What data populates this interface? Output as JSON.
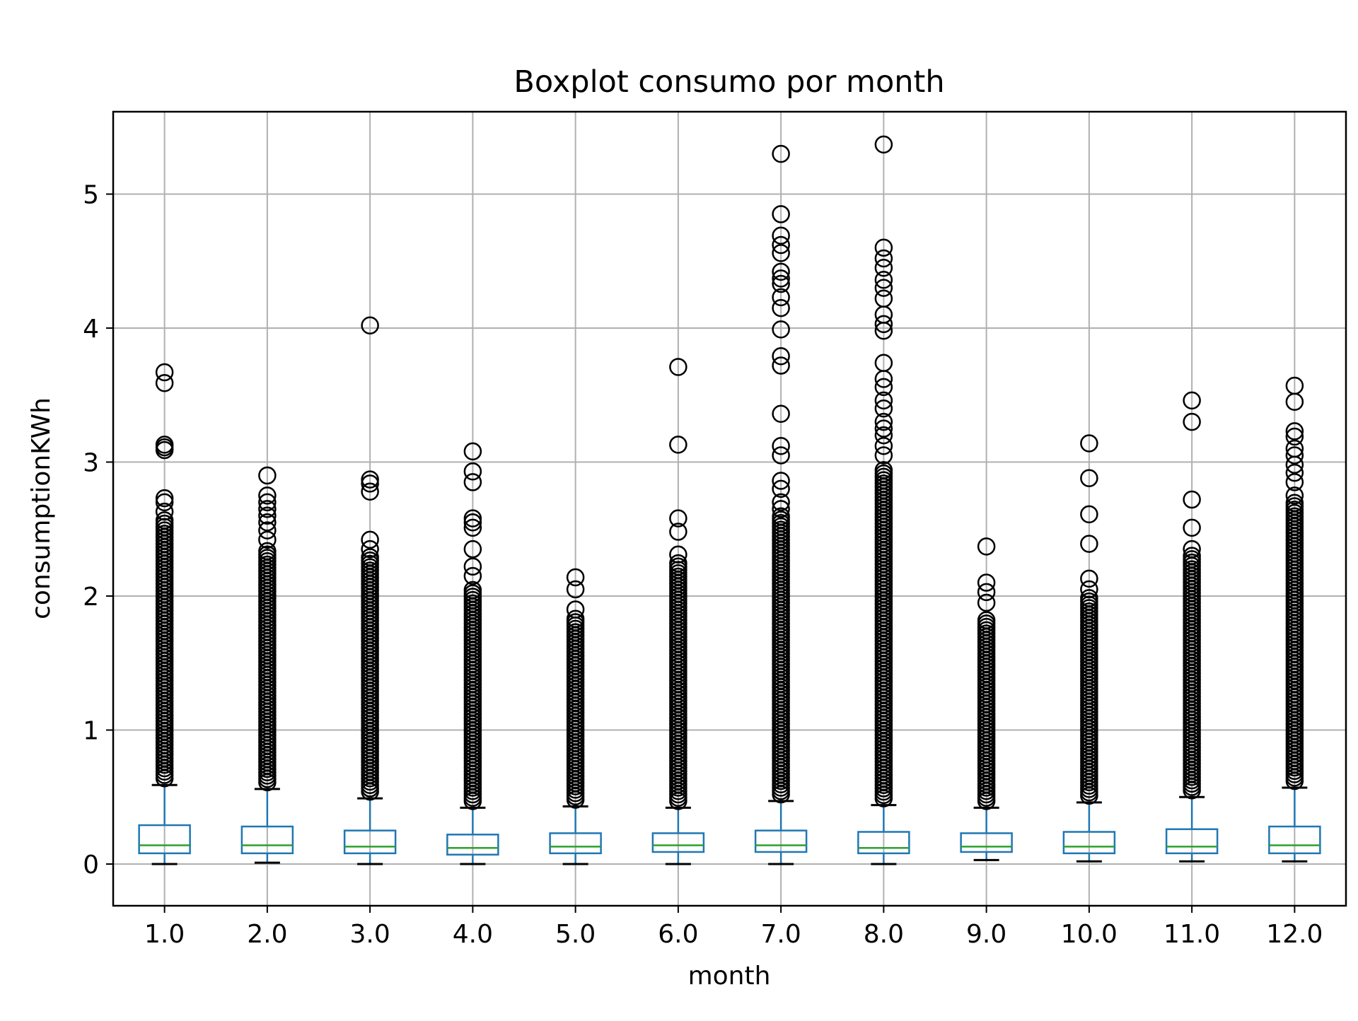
{
  "chart_data": {
    "type": "boxplot",
    "title": "Boxplot consumo por month",
    "xlabel": "month",
    "ylabel": "consumptionKWh",
    "ylim": [
      -0.26,
      5.63
    ],
    "yticks": [
      0,
      1,
      2,
      3,
      4,
      5
    ],
    "grid": true,
    "colors": {
      "box": "#1f77b4",
      "median": "#2ca02c",
      "whisker_cap": "#000000",
      "flier": "#000000",
      "grid": "#b0b0b0"
    },
    "categories": [
      "1.0",
      "2.0",
      "3.0",
      "4.0",
      "5.0",
      "6.0",
      "7.0",
      "8.0",
      "9.0",
      "10.0",
      "11.0",
      "12.0"
    ],
    "boxes": [
      {
        "whislo": 0.0,
        "q1": 0.08,
        "med": 0.14,
        "q3": 0.29,
        "whishi": 0.59,
        "fliers_dense_to": 2.57,
        "fliers": [
          2.63,
          2.7,
          2.73,
          3.09,
          3.11,
          3.13,
          3.59,
          3.67
        ]
      },
      {
        "whislo": 0.01,
        "q1": 0.08,
        "med": 0.14,
        "q3": 0.28,
        "whishi": 0.56,
        "fliers_dense_to": 2.35,
        "fliers": [
          2.42,
          2.49,
          2.55,
          2.6,
          2.65,
          2.7,
          2.75,
          2.9
        ]
      },
      {
        "whislo": 0.0,
        "q1": 0.08,
        "med": 0.13,
        "q3": 0.25,
        "whishi": 0.49,
        "fliers_dense_to": 2.3,
        "fliers": [
          2.35,
          2.42,
          2.78,
          2.84,
          2.87,
          4.02
        ]
      },
      {
        "whislo": 0.0,
        "q1": 0.07,
        "med": 0.12,
        "q3": 0.22,
        "whishi": 0.42,
        "fliers_dense_to": 2.05,
        "fliers": [
          2.15,
          2.22,
          2.35,
          2.51,
          2.55,
          2.58,
          2.85,
          2.93,
          3.08
        ]
      },
      {
        "whislo": 0.0,
        "q1": 0.08,
        "med": 0.13,
        "q3": 0.23,
        "whishi": 0.43,
        "fliers_dense_to": 1.84,
        "fliers": [
          1.9,
          2.05,
          2.14
        ]
      },
      {
        "whislo": 0.0,
        "q1": 0.09,
        "med": 0.14,
        "q3": 0.23,
        "whishi": 0.42,
        "fliers_dense_to": 2.25,
        "fliers": [
          2.31,
          2.48,
          2.58,
          3.13,
          3.71
        ]
      },
      {
        "whislo": 0.0,
        "q1": 0.09,
        "med": 0.14,
        "q3": 0.25,
        "whishi": 0.47,
        "fliers_dense_to": 2.6,
        "fliers": [
          2.65,
          2.7,
          2.8,
          2.86,
          3.05,
          3.12,
          3.36,
          3.72,
          3.79,
          3.99,
          4.15,
          4.23,
          4.33,
          4.37,
          4.42,
          4.56,
          4.62,
          4.69,
          4.85,
          5.3
        ]
      },
      {
        "whislo": 0.0,
        "q1": 0.08,
        "med": 0.12,
        "q3": 0.24,
        "whishi": 0.44,
        "fliers_dense_to": 2.95,
        "fliers": [
          3.05,
          3.12,
          3.2,
          3.25,
          3.3,
          3.4,
          3.46,
          3.56,
          3.62,
          3.74,
          3.98,
          4.03,
          4.1,
          4.22,
          4.3,
          4.36,
          4.45,
          4.52,
          4.6,
          5.37
        ]
      },
      {
        "whislo": 0.03,
        "q1": 0.09,
        "med": 0.13,
        "q3": 0.23,
        "whishi": 0.42,
        "fliers_dense_to": 1.84,
        "fliers": [
          1.95,
          2.03,
          2.1,
          2.37
        ]
      },
      {
        "whislo": 0.02,
        "q1": 0.08,
        "med": 0.13,
        "q3": 0.24,
        "whishi": 0.46,
        "fliers_dense_to": 2.0,
        "fliers": [
          2.05,
          2.13,
          2.39,
          2.61,
          2.88,
          3.14
        ]
      },
      {
        "whislo": 0.02,
        "q1": 0.08,
        "med": 0.13,
        "q3": 0.26,
        "whishi": 0.5,
        "fliers_dense_to": 2.3,
        "fliers": [
          2.35,
          2.51,
          2.72,
          3.3,
          3.46
        ]
      },
      {
        "whislo": 0.02,
        "q1": 0.08,
        "med": 0.14,
        "q3": 0.28,
        "whishi": 0.57,
        "fliers_dense_to": 2.7,
        "fliers": [
          2.75,
          2.85,
          2.92,
          2.98,
          3.05,
          3.1,
          3.19,
          3.23,
          3.45,
          3.57
        ]
      }
    ]
  }
}
